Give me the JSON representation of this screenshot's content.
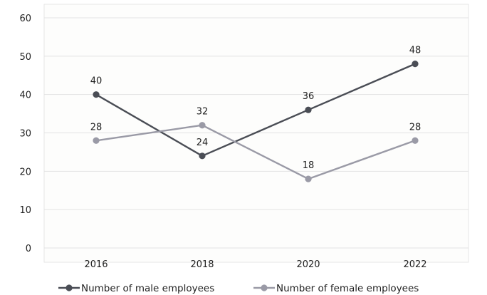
{
  "chart_data": {
    "type": "line",
    "categories": [
      "2016",
      "2018",
      "2020",
      "2022"
    ],
    "series": [
      {
        "name": "Number of male employees",
        "values": [
          40,
          24,
          36,
          48
        ],
        "color": "#4a4d55"
      },
      {
        "name": "Number of female employees",
        "values": [
          28,
          32,
          18,
          28
        ],
        "color": "#9a9aa6"
      }
    ],
    "title": "",
    "xlabel": "",
    "ylabel": "",
    "ylim": [
      0,
      60
    ],
    "yticks": [
      "0",
      "10",
      "20",
      "30",
      "40",
      "50",
      "60"
    ],
    "grid": true,
    "legend_position": "bottom"
  }
}
